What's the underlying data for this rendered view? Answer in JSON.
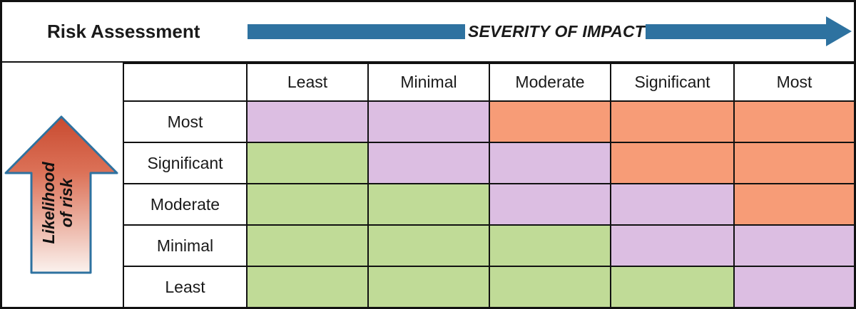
{
  "header": {
    "title": "Risk Assessment",
    "severity_label": "SEVERITY OF IMPACT"
  },
  "likelihood": {
    "label_line1": "Likelihood",
    "label_line2": "of risk"
  },
  "matrix": {
    "column_headers": [
      "Least",
      "Minimal",
      "Moderate",
      "Significant",
      "Most"
    ],
    "rows": [
      {
        "label": "Most",
        "cells": [
          "purple",
          "purple",
          "orange",
          "orange",
          "orange"
        ]
      },
      {
        "label": "Significant",
        "cells": [
          "green",
          "purple",
          "purple",
          "orange",
          "orange"
        ]
      },
      {
        "label": "Moderate",
        "cells": [
          "green",
          "green",
          "purple",
          "purple",
          "orange"
        ]
      },
      {
        "label": "Minimal",
        "cells": [
          "green",
          "green",
          "green",
          "purple",
          "purple"
        ]
      },
      {
        "label": "Least",
        "cells": [
          "green",
          "green",
          "green",
          "green",
          "purple"
        ]
      }
    ]
  },
  "colors": {
    "green": "#C0DB97",
    "purple": "#DCBEE2",
    "orange": "#F79C77",
    "arrow_blue": "#2E72A0",
    "arrow_red_top": "#C84A30",
    "arrow_red_mid": "#DC7258",
    "arrow_fade_bottom": "#FBF2EE",
    "line_black": "#111111"
  }
}
